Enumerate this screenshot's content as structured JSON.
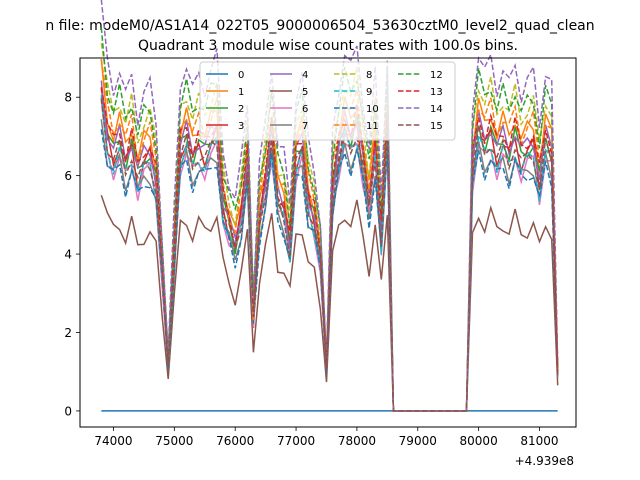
{
  "chart_data": {
    "type": "line",
    "suptitle": "n file: modeM0/AS1A14_022T05_9000006504_53630cztM0_level2_quad_clean",
    "title": "Quadrant 3 module wise count rates with 100.0s bins.",
    "xlabel": "",
    "ylabel": "",
    "x_offset_label": "+4.939e8",
    "xlim": [
      73450,
      81600
    ],
    "ylim": [
      -0.41,
      9.0
    ],
    "xticks": [
      74000,
      75000,
      76000,
      77000,
      78000,
      79000,
      80000,
      81000
    ],
    "xtick_labels": [
      "74000",
      "75000",
      "76000",
      "77000",
      "78000",
      "79000",
      "80000",
      "81000"
    ],
    "yticks": [
      0,
      2,
      4,
      6,
      8
    ],
    "ytick_labels": [
      "0",
      "2",
      "4",
      "6",
      "8"
    ],
    "grid": false,
    "legend_position": "top-center",
    "legend_columns": 4,
    "x": [
      73800,
      73900,
      74000,
      74100,
      74200,
      74300,
      74400,
      74500,
      74600,
      74700,
      74800,
      74900,
      75000,
      75100,
      75200,
      75300,
      75400,
      75500,
      75600,
      75700,
      75800,
      75900,
      76000,
      76100,
      76200,
      76300,
      76400,
      76500,
      76600,
      76700,
      76800,
      76900,
      77000,
      77100,
      77200,
      77300,
      77400,
      77500,
      77600,
      77700,
      77800,
      77900,
      78000,
      78100,
      78200,
      78300,
      78400,
      78500,
      78600,
      78700,
      78800,
      78900,
      79000,
      79100,
      79200,
      79300,
      79400,
      79500,
      79600,
      79700,
      79800,
      79900,
      80000,
      80100,
      80200,
      80300,
      80400,
      80500,
      80600,
      80700,
      80800,
      80900,
      81000,
      81100,
      81200,
      81300
    ],
    "base_profile": [
      7.0,
      6.0,
      5.6,
      5.9,
      5.4,
      5.8,
      5.1,
      5.5,
      5.6,
      5.0,
      3.0,
      1.0,
      3.5,
      5.7,
      6.0,
      5.5,
      5.8,
      5.6,
      5.9,
      6.1,
      4.5,
      4.0,
      3.6,
      4.3,
      5.4,
      2.0,
      4.2,
      5.0,
      6.0,
      4.6,
      4.4,
      3.6,
      5.5,
      5.8,
      4.6,
      4.2,
      3.3,
      0.9,
      4.8,
      5.6,
      6.2,
      5.9,
      6.3,
      5.4,
      4.5,
      5.8,
      3.8,
      6.2,
      0.0,
      0.0,
      0.0,
      0.0,
      0.0,
      0.0,
      0.0,
      0.0,
      0.0,
      0.0,
      0.0,
      0.0,
      0.0,
      5.3,
      6.2,
      5.8,
      6.1,
      5.6,
      5.9,
      5.6,
      6.0,
      5.5,
      5.7,
      5.8,
      5.0,
      5.9,
      5.6,
      0.8
    ],
    "series": [
      {
        "name": "0",
        "color": "#1f77b4",
        "dashed": false,
        "level": 0.0
      },
      {
        "name": "1",
        "color": "#ff7f0e",
        "dashed": false,
        "level": 6.3
      },
      {
        "name": "2",
        "color": "#2ca02c",
        "dashed": false,
        "level": 5.9
      },
      {
        "name": "3",
        "color": "#d62728",
        "dashed": false,
        "level": 5.8
      },
      {
        "name": "4",
        "color": "#9467bd",
        "dashed": false,
        "level": 6.0
      },
      {
        "name": "5",
        "color": "#8c564b",
        "dashed": false,
        "level": 4.1
      },
      {
        "name": "6",
        "color": "#e377c2",
        "dashed": false,
        "level": 5.5
      },
      {
        "name": "7",
        "color": "#7f7f7f",
        "dashed": false,
        "level": 5.4
      },
      {
        "name": "8",
        "color": "#bcbd22",
        "dashed": true,
        "level": 6.8
      },
      {
        "name": "9",
        "color": "#17becf",
        "dashed": true,
        "level": 5.6
      },
      {
        "name": "10",
        "color": "#1f77b4",
        "dashed": true,
        "level": 5.3
      },
      {
        "name": "11",
        "color": "#ff7f0e",
        "dashed": true,
        "level": 6.4
      },
      {
        "name": "12",
        "color": "#2ca02c",
        "dashed": true,
        "level": 6.9
      },
      {
        "name": "13",
        "color": "#d62728",
        "dashed": true,
        "level": 6.1
      },
      {
        "name": "14",
        "color": "#9467bd",
        "dashed": true,
        "level": 7.4
      },
      {
        "name": "15",
        "color": "#8c564b",
        "dashed": true,
        "level": 5.7
      }
    ]
  }
}
